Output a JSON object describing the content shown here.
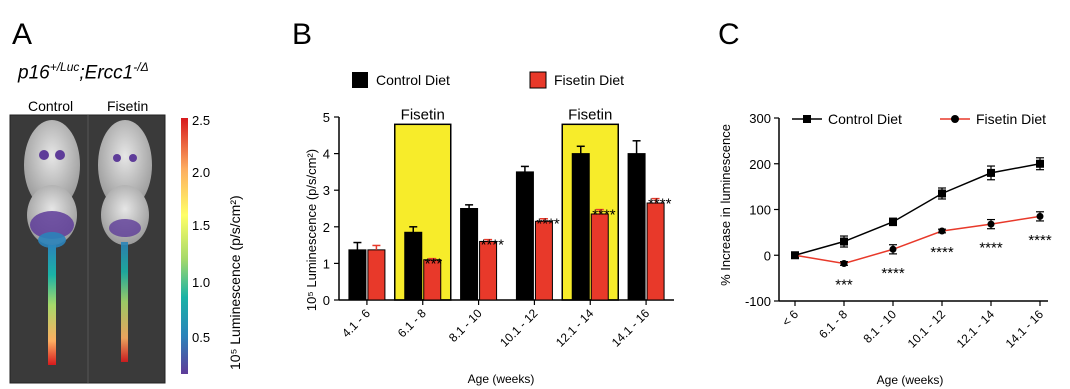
{
  "panelA": {
    "letter": "A",
    "genotype_base": "p16",
    "genotype_sup1": "+/Luc",
    "genotype_mid": ";Ercc1",
    "genotype_sup2": "-/Δ",
    "mouse_labels": [
      "Control",
      "Fisetin"
    ],
    "colorbar": {
      "label": "10⁵ Luminescence (p/s/cm²)",
      "ticks": [
        "2.5",
        "2.0",
        "1.5",
        "1.0",
        "0.5"
      ],
      "colors": [
        "#d7191c",
        "#fdae61",
        "#ffff66",
        "#a6d96a",
        "#1ab3a6",
        "#2b83ba",
        "#5e3c99"
      ]
    }
  },
  "panelB": {
    "letter": "B",
    "legend": [
      "Control Diet",
      "Fisetin Diet"
    ],
    "treatment_label": "Fisetin",
    "colors": {
      "control": "#000000",
      "fisetin": "#e8392a",
      "highlight": "#f7ec2a"
    }
  },
  "panelC": {
    "letter": "C",
    "legend": [
      "Control Diet",
      "Fisetin Diet"
    ],
    "colors": {
      "control": "#000000",
      "fisetin": "#e8392a"
    }
  },
  "chart_data": [
    {
      "type": "bar",
      "title": "",
      "xlabel": "Age (weeks)",
      "ylabel": "10⁵ Luminescence (p/s/cm²)",
      "ylim": [
        0,
        5
      ],
      "yticks": [
        "0",
        "1",
        "2",
        "3",
        "4",
        "5"
      ],
      "categories": [
        "4.1 - 6",
        "6.1 - 8",
        "8.1 - 10",
        "10.1 - 12",
        "12.1 - 14",
        "14.1 - 16"
      ],
      "series": [
        {
          "name": "Control Diet",
          "values": [
            1.37,
            1.85,
            2.5,
            3.5,
            4.0,
            4.0
          ],
          "errors": [
            0.2,
            0.15,
            0.1,
            0.15,
            0.2,
            0.35
          ]
        },
        {
          "name": "Fisetin Diet",
          "values": [
            1.37,
            1.1,
            1.6,
            2.15,
            2.35,
            2.65
          ],
          "errors": [
            0.12,
            0.03,
            0.05,
            0.07,
            0.12,
            0.12
          ]
        }
      ],
      "significance": [
        "",
        "***",
        "****",
        "****",
        "****",
        "****"
      ],
      "highlighted_categories": [
        1,
        4
      ]
    },
    {
      "type": "line",
      "title": "",
      "xlabel": "Age (weeks)",
      "ylabel": "% Increase in luminescence",
      "ylim": [
        -100,
        300
      ],
      "yticks": [
        "-100",
        "0",
        "100",
        "200",
        "300"
      ],
      "categories": [
        "< 6",
        "6.1 - 8",
        "8.1 - 10",
        "10.1 - 12",
        "12.1 - 14",
        "14.1 - 16"
      ],
      "series": [
        {
          "name": "Control Diet",
          "values": [
            0,
            30,
            73,
            135,
            180,
            200
          ],
          "errors": [
            0,
            12,
            8,
            12,
            15,
            13
          ]
        },
        {
          "name": "Fisetin Diet",
          "values": [
            0,
            -18,
            13,
            53,
            68,
            85
          ],
          "errors": [
            0,
            4,
            10,
            4,
            10,
            10
          ]
        }
      ],
      "significance": [
        "",
        "***",
        "****",
        "****",
        "****",
        "****"
      ],
      "legend_position": "top"
    }
  ]
}
